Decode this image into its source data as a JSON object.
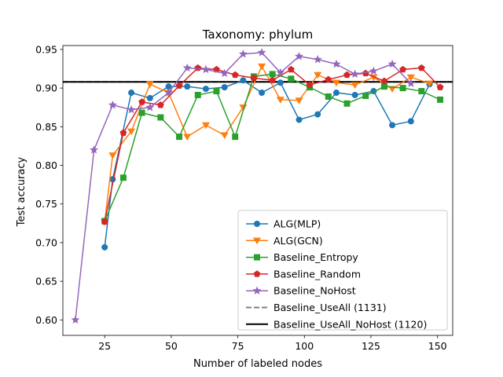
{
  "chart_data": {
    "type": "line",
    "title": "Taxonomy: phylum",
    "xlabel": "Number of labeled nodes",
    "ylabel": "Test accuracy",
    "xlim": [
      9.3,
      155.7
    ],
    "ylim": [
      0.58,
      0.955
    ],
    "xticks": [
      25,
      50,
      75,
      100,
      125,
      150
    ],
    "xtick_labels": [
      "25",
      "50",
      "75",
      "100",
      "125",
      "150"
    ],
    "yticks": [
      0.6,
      0.65,
      0.7,
      0.75,
      0.8,
      0.85,
      0.9,
      0.95
    ],
    "ytick_labels": [
      "0.60",
      "0.65",
      "0.70",
      "0.75",
      "0.80",
      "0.85",
      "0.90",
      "0.95"
    ],
    "grid": false,
    "legend_position": "bottom-right",
    "series": [
      {
        "name": "ALG(MLP)",
        "color": "#1f77b4",
        "marker": "circle",
        "x": [
          25,
          28,
          35,
          42,
          49,
          56,
          63,
          70,
          77,
          84,
          91,
          98,
          105,
          112,
          119,
          126,
          133,
          140,
          147
        ],
        "y": [
          0.694,
          0.782,
          0.894,
          0.887,
          0.902,
          0.902,
          0.899,
          0.901,
          0.91,
          0.894,
          0.907,
          0.859,
          0.866,
          0.894,
          0.891,
          0.896,
          0.852,
          0.857,
          0.905
        ]
      },
      {
        "name": "ALG(GCN)",
        "color": "#ff7f0e",
        "marker": "triangle-down",
        "x": [
          25,
          28,
          35,
          42,
          49,
          56,
          63,
          70,
          77,
          84,
          91,
          98,
          105,
          112,
          119,
          126,
          133,
          140,
          147
        ],
        "y": [
          0.727,
          0.813,
          0.844,
          0.905,
          0.894,
          0.837,
          0.852,
          0.839,
          0.875,
          0.928,
          0.885,
          0.884,
          0.917,
          0.907,
          0.904,
          0.914,
          0.899,
          0.914,
          0.906
        ]
      },
      {
        "name": "Baseline_Entropy",
        "color": "#2ca02c",
        "marker": "square",
        "x": [
          25,
          32,
          39,
          46,
          53,
          60,
          67,
          74,
          81,
          88,
          95,
          102,
          109,
          116,
          123,
          130,
          137,
          144,
          151
        ],
        "y": [
          0.728,
          0.784,
          0.868,
          0.862,
          0.837,
          0.891,
          0.896,
          0.837,
          0.915,
          0.918,
          0.912,
          0.901,
          0.889,
          0.88,
          0.89,
          0.902,
          0.9,
          0.896,
          0.885
        ]
      },
      {
        "name": "Baseline_Random",
        "color": "#d62728",
        "marker": "pentagon",
        "x": [
          25,
          32,
          39,
          46,
          53,
          60,
          67,
          74,
          81,
          88,
          95,
          102,
          109,
          116,
          123,
          130,
          137,
          144,
          151
        ],
        "y": [
          0.727,
          0.842,
          0.882,
          0.878,
          0.903,
          0.926,
          0.924,
          0.917,
          0.913,
          0.91,
          0.924,
          0.904,
          0.911,
          0.917,
          0.919,
          0.909,
          0.924,
          0.926,
          0.901
        ]
      },
      {
        "name": "Baseline_NoHost",
        "color": "#9467bd",
        "marker": "star",
        "x": [
          14,
          21,
          28,
          35,
          42,
          49,
          56,
          63,
          70,
          77,
          84,
          91,
          98,
          105,
          112,
          119,
          126,
          133,
          140
        ],
        "y": [
          0.6,
          0.82,
          0.878,
          0.872,
          0.875,
          0.894,
          0.926,
          0.924,
          0.919,
          0.944,
          0.946,
          0.92,
          0.941,
          0.937,
          0.931,
          0.918,
          0.922,
          0.931,
          0.906
        ]
      }
    ],
    "reference_lines": [
      {
        "name": "Baseline_UseAll (1131)",
        "y": 0.908,
        "color": "#7f7f7f",
        "style": "dashed"
      },
      {
        "name": "Baseline_UseAll_NoHost (1120)",
        "y": 0.908,
        "color": "#000000",
        "style": "solid"
      }
    ]
  }
}
